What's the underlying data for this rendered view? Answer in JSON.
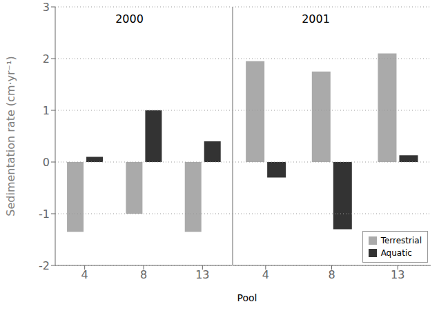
{
  "chart_data": [
    {
      "type": "bar",
      "annotations": [
        "2000"
      ],
      "ylabel": "Sedimentation rate (cm·yr⁻¹)",
      "xlabel": "Pool",
      "categories": [
        "4",
        "8",
        "13"
      ],
      "series": [
        {
          "name": "Terrestrial",
          "color": "#aaaaaa",
          "values": [
            -1.35,
            -1.0,
            -1.35
          ]
        },
        {
          "name": "Aquatic",
          "color": "#333333",
          "values": [
            0.1,
            1.0,
            0.4
          ]
        }
      ],
      "ylim": [
        -2,
        3
      ],
      "yticks": [
        -2,
        -1,
        0,
        1,
        2,
        3
      ],
      "grid": true
    },
    {
      "type": "bar",
      "annotations": [
        "2001"
      ],
      "categories": [
        "4",
        "8",
        "13"
      ],
      "series": [
        {
          "name": "Terrestrial",
          "color": "#aaaaaa",
          "values": [
            1.95,
            1.75,
            2.1
          ]
        },
        {
          "name": "Aquatic",
          "color": "#333333",
          "values": [
            -0.3,
            -1.3,
            0.13
          ]
        }
      ],
      "ylim": [
        -2,
        3
      ],
      "yticks": [
        -2,
        -1,
        0,
        1,
        2,
        3
      ],
      "grid": true,
      "legend": "lower right"
    }
  ]
}
